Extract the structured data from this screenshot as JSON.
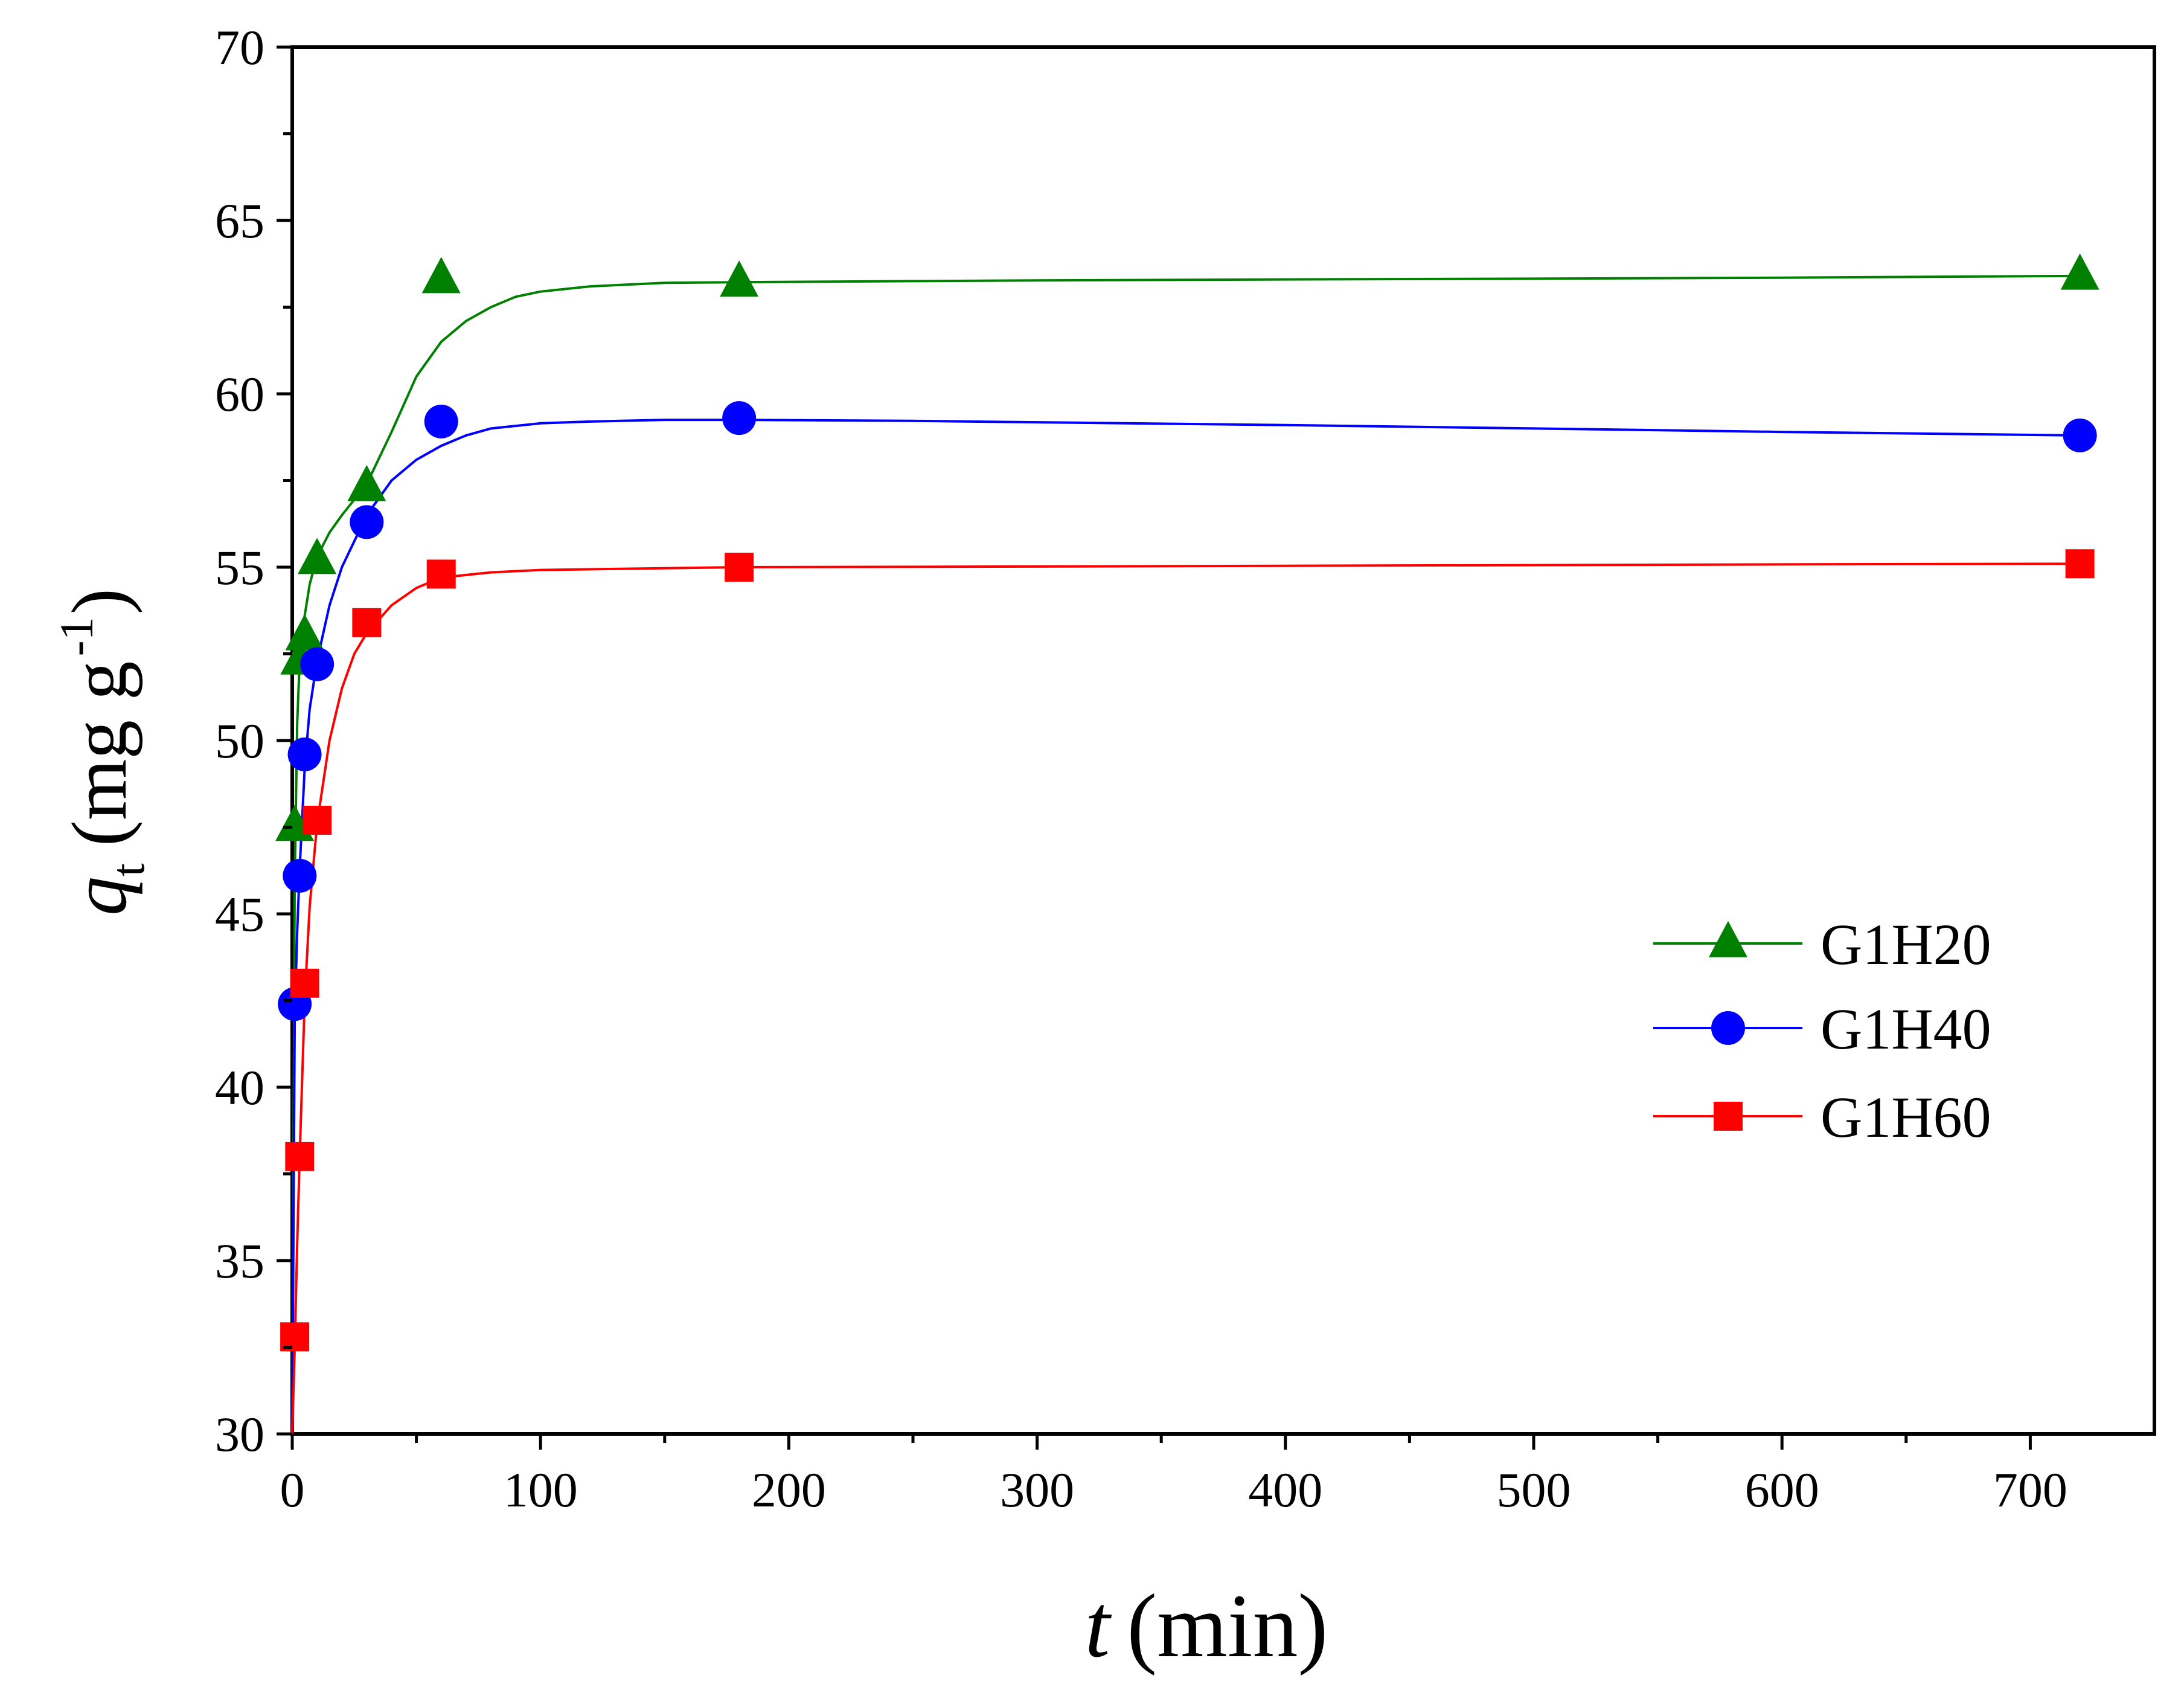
{
  "chart_data": {
    "type": "scatter",
    "title": "",
    "xlabel": {
      "var": "t",
      "unit": "(min)"
    },
    "ylabel": {
      "var": "q",
      "sub": "t",
      "pre": "(mg g",
      "sup": "-1",
      "post": ")"
    },
    "xlim": [
      0,
      750
    ],
    "ylim": [
      30,
      70
    ],
    "xticks": [
      0,
      100,
      200,
      300,
      400,
      500,
      600,
      700
    ],
    "xtick_labels": [
      "0",
      "100",
      "200",
      "300",
      "400",
      "500",
      "600",
      "700"
    ],
    "yticks": [
      30,
      35,
      40,
      45,
      50,
      55,
      60,
      65,
      70
    ],
    "ytick_labels": [
      "30",
      "35",
      "40",
      "45",
      "50",
      "55",
      "60",
      "65",
      "70"
    ],
    "grid": false,
    "legend_position": "right",
    "series": [
      {
        "name": "G1H20",
        "color": "#008000",
        "marker": "triangle",
        "x": [
          1,
          3,
          5,
          10,
          30,
          60,
          180,
          720
        ],
        "y": [
          47.5,
          52.3,
          53.0,
          55.2,
          57.3,
          63.3,
          63.2,
          63.4
        ],
        "fit_x": [
          0,
          1,
          2,
          3,
          5,
          7,
          10,
          15,
          20,
          30,
          40,
          50,
          60,
          70,
          80,
          90,
          100,
          120,
          150,
          180,
          250,
          300,
          400,
          500,
          600,
          720
        ],
        "fit_y": [
          30.0,
          46.0,
          50.5,
          52.3,
          53.6,
          54.5,
          55.3,
          56.0,
          56.5,
          57.4,
          58.9,
          60.5,
          61.5,
          62.1,
          62.5,
          62.8,
          62.95,
          63.1,
          63.2,
          63.22,
          63.25,
          63.27,
          63.3,
          63.32,
          63.35,
          63.4
        ]
      },
      {
        "name": "G1H40",
        "color": "#0000FF",
        "marker": "circle",
        "x": [
          1,
          3,
          5,
          10,
          30,
          60,
          180,
          720
        ],
        "y": [
          42.4,
          46.1,
          49.6,
          52.2,
          56.3,
          59.2,
          59.3,
          58.8
        ],
        "fit_x": [
          0,
          1,
          2,
          3,
          5,
          7,
          10,
          15,
          20,
          30,
          40,
          50,
          60,
          70,
          80,
          100,
          120,
          150,
          180,
          250,
          300,
          400,
          500,
          600,
          720
        ],
        "fit_y": [
          30.0,
          42.0,
          44.5,
          46.3,
          49.2,
          50.9,
          52.3,
          53.9,
          55.0,
          56.5,
          57.5,
          58.1,
          58.5,
          58.8,
          59.0,
          59.15,
          59.2,
          59.25,
          59.25,
          59.22,
          59.18,
          59.1,
          59.0,
          58.9,
          58.8
        ]
      },
      {
        "name": "G1H60",
        "color": "#FF0000",
        "marker": "square",
        "x": [
          1,
          3,
          5,
          10,
          30,
          60,
          180,
          720
        ],
        "y": [
          32.8,
          38.0,
          43.0,
          47.7,
          53.4,
          54.8,
          55.0,
          55.1
        ],
        "fit_x": [
          0,
          1,
          2,
          3,
          5,
          7,
          10,
          15,
          20,
          25,
          30,
          40,
          50,
          60,
          80,
          100,
          150,
          180,
          300,
          400,
          500,
          600,
          720
        ],
        "fit_y": [
          30.0,
          32.5,
          35.5,
          38.0,
          42.5,
          45.2,
          47.6,
          50.0,
          51.5,
          52.5,
          53.1,
          53.9,
          54.4,
          54.7,
          54.85,
          54.92,
          54.97,
          55.0,
          55.02,
          55.04,
          55.06,
          55.08,
          55.1
        ]
      }
    ]
  }
}
